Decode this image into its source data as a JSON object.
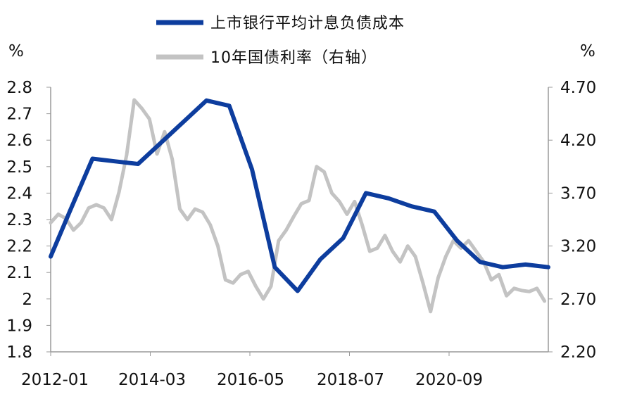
{
  "chart_data": {
    "type": "line",
    "left_unit": "%",
    "right_unit": "%",
    "left_axis": {
      "ylim": [
        1.8,
        2.8
      ],
      "ticks": [
        "2.8",
        "2.7",
        "2.6",
        "2.5",
        "2.4",
        "2.3",
        "2.2",
        "2.1",
        "2",
        "1.9",
        "1.8"
      ]
    },
    "right_axis": {
      "ylim": [
        2.2,
        4.7
      ],
      "ticks": [
        "4.70",
        "4.20",
        "3.70",
        "3.20",
        "2.70",
        "2.20"
      ]
    },
    "x_axis": {
      "range": [
        "2012-01",
        "2022-12"
      ],
      "ticks": [
        "2012-01",
        "2014-03",
        "2016-05",
        "2018-07",
        "2020-09"
      ]
    },
    "grid": false,
    "legend_position": "top",
    "series": [
      {
        "name": "上市银行平均计息负债成本",
        "axis": "left",
        "color": "#0d3d9e",
        "points": [
          [
            "2012-01",
            2.16
          ],
          [
            "2012-06",
            2.33
          ],
          [
            "2012-12",
            2.53
          ],
          [
            "2013-06",
            2.52
          ],
          [
            "2013-12",
            2.51
          ],
          [
            "2014-06",
            2.59
          ],
          [
            "2014-12",
            2.67
          ],
          [
            "2015-06",
            2.75
          ],
          [
            "2015-12",
            2.73
          ],
          [
            "2016-06",
            2.49
          ],
          [
            "2016-12",
            2.12
          ],
          [
            "2017-06",
            2.03
          ],
          [
            "2017-12",
            2.15
          ],
          [
            "2018-06",
            2.23
          ],
          [
            "2018-12",
            2.4
          ],
          [
            "2019-06",
            2.38
          ],
          [
            "2019-12",
            2.35
          ],
          [
            "2020-06",
            2.33
          ],
          [
            "2020-12",
            2.22
          ],
          [
            "2021-06",
            2.14
          ],
          [
            "2021-12",
            2.12
          ],
          [
            "2022-06",
            2.13
          ],
          [
            "2022-12",
            2.12
          ]
        ]
      },
      {
        "name": "10年国债利率（右轴）",
        "axis": "right",
        "color": "#c3c3c3",
        "points": [
          [
            "2012-01",
            3.42
          ],
          [
            "2012-03",
            3.5
          ],
          [
            "2012-05",
            3.46
          ],
          [
            "2012-07",
            3.35
          ],
          [
            "2012-09",
            3.42
          ],
          [
            "2012-11",
            3.56
          ],
          [
            "2013-01",
            3.59
          ],
          [
            "2013-03",
            3.56
          ],
          [
            "2013-05",
            3.45
          ],
          [
            "2013-07",
            3.71
          ],
          [
            "2013-09",
            4.06
          ],
          [
            "2013-11",
            4.58
          ],
          [
            "2014-01",
            4.5
          ],
          [
            "2014-03",
            4.4
          ],
          [
            "2014-05",
            4.07
          ],
          [
            "2014-07",
            4.28
          ],
          [
            "2014-09",
            4.02
          ],
          [
            "2014-11",
            3.55
          ],
          [
            "2015-01",
            3.45
          ],
          [
            "2015-03",
            3.55
          ],
          [
            "2015-05",
            3.52
          ],
          [
            "2015-07",
            3.4
          ],
          [
            "2015-09",
            3.2
          ],
          [
            "2015-11",
            2.88
          ],
          [
            "2016-01",
            2.85
          ],
          [
            "2016-03",
            2.93
          ],
          [
            "2016-05",
            2.96
          ],
          [
            "2016-07",
            2.82
          ],
          [
            "2016-09",
            2.7
          ],
          [
            "2016-11",
            2.82
          ],
          [
            "2017-01",
            3.25
          ],
          [
            "2017-03",
            3.35
          ],
          [
            "2017-05",
            3.48
          ],
          [
            "2017-07",
            3.6
          ],
          [
            "2017-09",
            3.63
          ],
          [
            "2017-11",
            3.95
          ],
          [
            "2018-01",
            3.9
          ],
          [
            "2018-03",
            3.7
          ],
          [
            "2018-05",
            3.62
          ],
          [
            "2018-07",
            3.5
          ],
          [
            "2018-09",
            3.62
          ],
          [
            "2018-11",
            3.4
          ],
          [
            "2019-01",
            3.15
          ],
          [
            "2019-03",
            3.18
          ],
          [
            "2019-05",
            3.3
          ],
          [
            "2019-07",
            3.15
          ],
          [
            "2019-09",
            3.05
          ],
          [
            "2019-11",
            3.2
          ],
          [
            "2020-01",
            3.1
          ],
          [
            "2020-03",
            2.85
          ],
          [
            "2020-05",
            2.58
          ],
          [
            "2020-07",
            2.9
          ],
          [
            "2020-09",
            3.1
          ],
          [
            "2020-11",
            3.25
          ],
          [
            "2021-01",
            3.18
          ],
          [
            "2021-03",
            3.25
          ],
          [
            "2021-05",
            3.15
          ],
          [
            "2021-07",
            3.05
          ],
          [
            "2021-09",
            2.88
          ],
          [
            "2021-11",
            2.93
          ],
          [
            "2022-01",
            2.73
          ],
          [
            "2022-03",
            2.8
          ],
          [
            "2022-05",
            2.78
          ],
          [
            "2022-07",
            2.77
          ],
          [
            "2022-09",
            2.8
          ],
          [
            "2022-11",
            2.68
          ]
        ]
      }
    ]
  }
}
